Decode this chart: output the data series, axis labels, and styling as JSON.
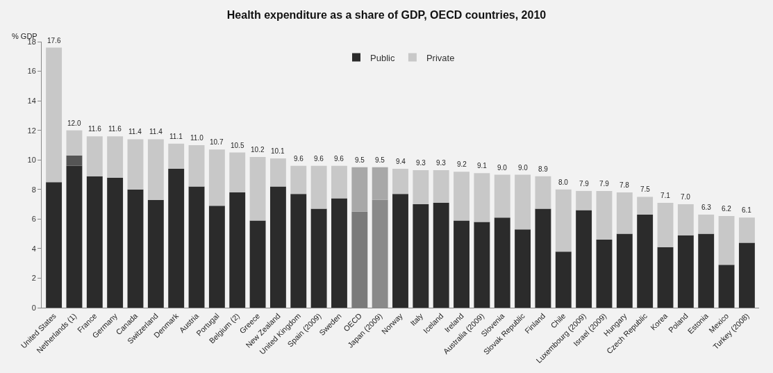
{
  "chart_data": {
    "type": "bar",
    "title": "Health expenditure as a share of GDP, OECD countries, 2010",
    "ylabel": "% GDP",
    "categories": [
      "United States",
      "Netherlands (1)",
      "France",
      "Germany",
      "Canada",
      "Switzerland",
      "Denmark",
      "Austria",
      "Portugal",
      "Belgium (2)",
      "Greece",
      "New Zealand",
      "United Kingdom",
      "Spain (2009)",
      "Sweden",
      "OECD",
      "Japan (2009)",
      "Norway",
      "Italy",
      "Iceland",
      "Ireland",
      "Australia (2009)",
      "Slovenia",
      "Slovak Republic",
      "Finland",
      "Chile",
      "Luxembourg (2009)",
      "Israel (2009)",
      "Hungary",
      "Czech Republic",
      "Korea",
      "Poland",
      "Estonia",
      "Mexico",
      "Turkey (2008)"
    ],
    "stacked": true,
    "series": [
      {
        "name": "Public",
        "color": "#2b2b2b",
        "colors": [
          null,
          null,
          null,
          null,
          null,
          null,
          null,
          null,
          null,
          null,
          null,
          null,
          null,
          null,
          null,
          "#7a7a7a",
          "#8a8a8a",
          null,
          null,
          null,
          null,
          null,
          null,
          null,
          null,
          null,
          null,
          null,
          null,
          null,
          null,
          null,
          null,
          null,
          null
        ],
        "values": [
          8.5,
          9.6,
          8.9,
          8.8,
          8.0,
          7.3,
          9.4,
          8.2,
          6.9,
          7.8,
          5.9,
          8.2,
          7.7,
          6.7,
          7.4,
          6.5,
          7.3,
          7.7,
          7.0,
          7.1,
          5.9,
          5.8,
          6.1,
          5.3,
          6.7,
          3.8,
          6.6,
          4.6,
          5.0,
          6.3,
          4.1,
          4.9,
          5.0,
          2.9,
          4.4
        ]
      },
      {
        "color": "#555555",
        "values": [
          null,
          0.7,
          null,
          null,
          null,
          null,
          null,
          null,
          null,
          null,
          null,
          null,
          null,
          null,
          null,
          null,
          null,
          null,
          null,
          null,
          null,
          null,
          null,
          null,
          null,
          null,
          null,
          null,
          null,
          null,
          null,
          null,
          null,
          null,
          null
        ]
      },
      {
        "name": "Private",
        "color": "#c8c8c8",
        "colors": [
          null,
          null,
          null,
          null,
          null,
          null,
          null,
          null,
          null,
          null,
          null,
          null,
          null,
          null,
          null,
          "#a8a8a8",
          "#a8a8a8",
          null,
          null,
          null,
          null,
          null,
          null,
          null,
          null,
          null,
          null,
          null,
          null,
          null,
          null,
          null,
          null,
          null,
          null
        ],
        "values": [
          9.1,
          1.7,
          2.7,
          2.8,
          3.4,
          4.1,
          1.7,
          2.8,
          3.8,
          2.7,
          4.3,
          1.9,
          1.9,
          2.9,
          2.2,
          3.0,
          2.2,
          1.7,
          2.3,
          2.2,
          3.3,
          3.3,
          2.9,
          3.7,
          2.2,
          4.2,
          1.3,
          3.3,
          2.8,
          1.2,
          3.0,
          2.1,
          1.3,
          3.3,
          1.7
        ]
      }
    ],
    "totals": [
      "17.6",
      "12.0",
      "11.6",
      "11.6",
      "11.4",
      "11.4",
      "11.1",
      "11.0",
      "10.7",
      "10.5",
      "10.2",
      "10.1",
      "9.6",
      "9.6",
      "9.6",
      "9.5",
      "9.5",
      "9.4",
      "9.3",
      "9.3",
      "9.2",
      "9.1",
      "9.0",
      "9.0",
      "8.9",
      "8.0",
      "7.9",
      "7.9",
      "7.8",
      "7.5",
      "7.1",
      "7.0",
      "6.3",
      "6.2",
      "6.1"
    ],
    "ylim": [
      0,
      18
    ],
    "yticks": [
      0,
      2,
      4,
      6,
      8,
      10,
      12,
      14,
      16,
      18
    ],
    "grid": false,
    "legend": "top"
  }
}
